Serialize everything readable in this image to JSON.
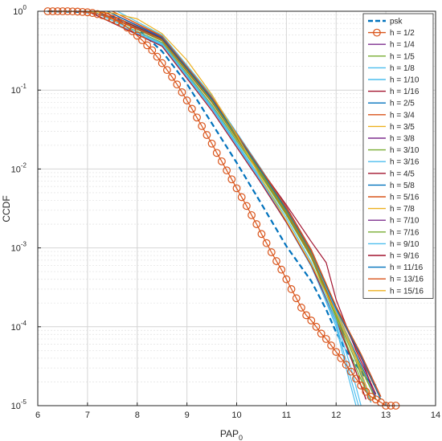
{
  "chart_data": {
    "type": "line",
    "xlabel": "PAP",
    "xlabel_sub": "0",
    "ylabel": "CCDF",
    "xlim": [
      6,
      14
    ],
    "ylim": [
      1e-05,
      1
    ],
    "yscale": "log",
    "grid": true,
    "minor_grid": true,
    "legend_position": "top-right",
    "x_ticks": [
      "6",
      "7",
      "8",
      "9",
      "10",
      "11",
      "12",
      "13",
      "14"
    ],
    "y_ticks": [
      {
        "base": "10",
        "exp": "0"
      },
      {
        "base": "10",
        "exp": "-1"
      },
      {
        "base": "10",
        "exp": "-2"
      },
      {
        "base": "10",
        "exp": "-3"
      },
      {
        "base": "10",
        "exp": "-4"
      },
      {
        "base": "10",
        "exp": "-5"
      }
    ],
    "series": [
      {
        "name": "psk",
        "color": "#0072BD",
        "style": "dashed",
        "x": [
          6.2,
          7.0,
          7.5,
          8.0,
          8.5,
          9.0,
          9.5,
          10.0,
          10.5,
          11.0,
          11.5,
          11.8,
          12.0,
          12.2,
          12.4,
          12.6,
          12.8
        ],
        "y": [
          1,
          0.97,
          0.85,
          0.6,
          0.31,
          0.12,
          0.038,
          0.012,
          0.0036,
          0.00105,
          0.00038,
          0.000165,
          8.5e-05,
          5e-05,
          3.3e-05,
          2.2e-05,
          1.8e-05
        ]
      },
      {
        "name": "h = 1/2",
        "color": "#D95319",
        "marker": "circle",
        "x": [
          6.2,
          6.3,
          6.4,
          6.5,
          6.6,
          6.7,
          6.8,
          6.9,
          7.0,
          7.1,
          7.2,
          7.3,
          7.4,
          7.5,
          7.6,
          7.7,
          7.8,
          7.9,
          8.0,
          8.1,
          8.2,
          8.3,
          8.4,
          8.5,
          8.6,
          8.7,
          8.8,
          8.9,
          9.0,
          9.1,
          9.2,
          9.3,
          9.4,
          9.5,
          9.6,
          9.7,
          9.8,
          9.9,
          10.0,
          10.1,
          10.2,
          10.3,
          10.4,
          10.5,
          10.6,
          10.7,
          10.8,
          10.9,
          11.0,
          11.1,
          11.2,
          11.3,
          11.4,
          11.5,
          11.6,
          11.7,
          11.8,
          11.9,
          12.0,
          12.1,
          12.2,
          12.3,
          12.4,
          12.5,
          12.6,
          12.7,
          12.8,
          12.9,
          13.0,
          13.1,
          13.2
        ],
        "y": [
          1,
          1,
          1,
          1,
          1,
          0.995,
          0.99,
          0.98,
          0.97,
          0.95,
          0.92,
          0.89,
          0.85,
          0.8,
          0.75,
          0.69,
          0.62,
          0.56,
          0.49,
          0.43,
          0.37,
          0.32,
          0.265,
          0.22,
          0.18,
          0.147,
          0.118,
          0.094,
          0.074,
          0.058,
          0.045,
          0.035,
          0.027,
          0.021,
          0.016,
          0.0125,
          0.0096,
          0.0074,
          0.0057,
          0.0044,
          0.0034,
          0.0026,
          0.002,
          0.0015,
          0.00115,
          0.00088,
          0.00068,
          0.00053,
          0.0004,
          0.0003,
          0.00023,
          0.000175,
          0.00014,
          0.00012,
          0.0001,
          8.2e-05,
          7e-05,
          5.8e-05,
          4.8e-05,
          4e-05,
          3.3e-05,
          2.7e-05,
          2.2e-05,
          1.8e-05,
          1.5e-05,
          1.3e-05,
          1.2e-05,
          1.1e-05,
          1e-05,
          1e-05,
          1e-05
        ]
      },
      {
        "name": "h = 1/4",
        "color": "#7E2F8E",
        "x": [
          7.2,
          8.5,
          9.5,
          10.5,
          11.0,
          11.5,
          12.0,
          12.3,
          12.6
        ],
        "y": [
          1,
          0.42,
          0.07,
          0.0085,
          0.0028,
          0.0008,
          0.00015,
          4e-05,
          1.2e-05
        ]
      },
      {
        "name": "h = 1/5",
        "color": "#77AC30",
        "x": [
          7.1,
          8.5,
          9.5,
          10.5,
          11.0,
          11.5,
          12.0,
          12.4,
          12.7
        ],
        "y": [
          1,
          0.4,
          0.065,
          0.008,
          0.0026,
          0.00075,
          0.00013,
          3e-05,
          1.1e-05
        ]
      },
      {
        "name": "h = 1/8",
        "color": "#4DBEEE",
        "x": [
          7.0,
          8.5,
          9.5,
          10.5,
          11.0,
          11.5,
          12.0,
          12.2,
          12.4
        ],
        "y": [
          1,
          0.38,
          0.06,
          0.007,
          0.0022,
          0.0006,
          0.0001,
          3e-05,
          1e-05
        ]
      },
      {
        "name": "h = 1/10",
        "color": "#4DBEEE",
        "x": [
          7.0,
          8.5,
          9.5,
          10.5,
          11.0,
          11.5,
          12.0,
          12.25,
          12.45
        ],
        "y": [
          1,
          0.37,
          0.058,
          0.0068,
          0.0021,
          0.00058,
          0.00011,
          2.8e-05,
          1e-05
        ]
      },
      {
        "name": "h = 1/16",
        "color": "#A2142F",
        "x": [
          7.0,
          8.5,
          9.5,
          10.5,
          11.0,
          11.5,
          12.0,
          12.3,
          12.6
        ],
        "y": [
          1,
          0.36,
          0.055,
          0.0065,
          0.0021,
          0.0006,
          0.00012,
          4e-05,
          1.2e-05
        ]
      },
      {
        "name": "h = 2/5",
        "color": "#0072BD",
        "x": [
          7.2,
          8.5,
          9.5,
          10.5,
          11.0,
          11.5,
          12.0,
          12.4,
          12.8
        ],
        "y": [
          1,
          0.43,
          0.072,
          0.0088,
          0.0029,
          0.00085,
          0.00016,
          4.5e-05,
          1.3e-05
        ]
      },
      {
        "name": "h = 3/4",
        "color": "#D95319",
        "x": [
          7.3,
          8.5,
          9.5,
          10.5,
          11.0,
          11.5,
          12.0,
          12.5,
          12.9
        ],
        "y": [
          1,
          0.45,
          0.076,
          0.0092,
          0.003,
          0.00088,
          0.00017,
          4e-05,
          1.2e-05
        ]
      },
      {
        "name": "h = 3/5",
        "color": "#EDB120",
        "x": [
          7.3,
          8.5,
          9.5,
          10.5,
          11.0,
          11.5,
          12.0,
          12.4,
          12.8
        ],
        "y": [
          1,
          0.46,
          0.078,
          0.0094,
          0.0031,
          0.0009,
          0.00017,
          4.2e-05,
          1.2e-05
        ]
      },
      {
        "name": "h = 3/8",
        "color": "#7E2F8E",
        "x": [
          7.2,
          8.5,
          9.5,
          10.5,
          11.0,
          11.5,
          12.0,
          12.4,
          12.7
        ],
        "y": [
          1,
          0.44,
          0.074,
          0.009,
          0.0029,
          0.00082,
          0.00015,
          4e-05,
          1.2e-05
        ]
      },
      {
        "name": "h = 3/10",
        "color": "#77AC30",
        "x": [
          7.2,
          8.5,
          9.5,
          10.5,
          11.0,
          11.5,
          12.0,
          12.4,
          12.7
        ],
        "y": [
          1,
          0.42,
          0.07,
          0.0084,
          0.0027,
          0.00078,
          0.00014,
          3.6e-05,
          1.1e-05
        ]
      },
      {
        "name": "h = 3/16",
        "color": "#4DBEEE",
        "x": [
          7.1,
          8.5,
          9.5,
          10.5,
          11.0,
          11.5,
          12.0,
          12.3,
          12.5
        ],
        "y": [
          1,
          0.39,
          0.062,
          0.0074,
          0.0024,
          0.00066,
          0.00012,
          3e-05,
          1e-05
        ]
      },
      {
        "name": "h = 4/5",
        "color": "#A2142F",
        "x": [
          7.4,
          8.5,
          9.5,
          10.5,
          11.0,
          11.5,
          12.0,
          12.5,
          12.9
        ],
        "y": [
          1,
          0.47,
          0.08,
          0.0097,
          0.0033,
          0.00095,
          0.00018,
          4.5e-05,
          1.3e-05
        ]
      },
      {
        "name": "h = 5/8",
        "color": "#0072BD",
        "x": [
          7.3,
          8.5,
          9.5,
          10.5,
          11.0,
          11.5,
          12.0,
          12.4,
          12.8
        ],
        "y": [
          1,
          0.45,
          0.077,
          0.0093,
          0.003,
          0.00087,
          0.00016,
          4e-05,
          1.2e-05
        ]
      },
      {
        "name": "h = 5/16",
        "color": "#D95319",
        "x": [
          7.2,
          8.5,
          9.5,
          10.5,
          11.0,
          11.5,
          12.0,
          12.4,
          12.7
        ],
        "y": [
          1,
          0.43,
          0.071,
          0.0086,
          0.0028,
          0.0008,
          0.00015,
          4e-05,
          1.1e-05
        ]
      },
      {
        "name": "h = 7/8",
        "color": "#EDB120",
        "x": [
          7.5,
          8.5,
          9.5,
          10.5,
          11.0,
          11.5,
          12.0,
          12.5,
          12.9
        ],
        "y": [
          1,
          0.49,
          0.083,
          0.0098,
          0.0032,
          0.00093,
          0.00018,
          4.5e-05,
          1.2e-05
        ]
      },
      {
        "name": "h = 7/10",
        "color": "#7E2F8E",
        "x": [
          7.4,
          8.5,
          9.5,
          10.5,
          11.0,
          11.5,
          12.0,
          12.5,
          12.8
        ],
        "y": [
          1,
          0.47,
          0.079,
          0.0095,
          0.0031,
          0.0009,
          0.00017,
          4.2e-05,
          1.2e-05
        ]
      },
      {
        "name": "h = 7/16",
        "color": "#77AC30",
        "x": [
          7.3,
          8.5,
          9.5,
          10.5,
          11.0,
          11.5,
          12.0,
          12.4,
          12.8
        ],
        "y": [
          1,
          0.44,
          0.073,
          0.0088,
          0.0029,
          0.00084,
          0.00016,
          4e-05,
          1.2e-05
        ]
      },
      {
        "name": "h = 9/10",
        "color": "#4DBEEE",
        "x": [
          7.6,
          8.5,
          9.5,
          10.5,
          11.0,
          11.5,
          12.0,
          12.4,
          12.7
        ],
        "y": [
          1,
          0.5,
          0.085,
          0.0099,
          0.0032,
          0.0009,
          0.00016,
          4e-05,
          1.1e-05
        ]
      },
      {
        "name": "h = 9/16",
        "color": "#A2142F",
        "x": [
          7.3,
          8.5,
          9.5,
          10.5,
          11.0,
          11.5,
          11.8,
          12.0,
          12.4,
          12.8
        ],
        "y": [
          1,
          0.45,
          0.078,
          0.0096,
          0.0035,
          0.0012,
          0.00065,
          0.00022,
          5e-05,
          1.4e-05
        ]
      },
      {
        "name": "h = 11/16",
        "color": "#0072BD",
        "x": [
          7.4,
          8.5,
          9.5,
          10.5,
          11.0,
          11.5,
          12.0,
          12.5,
          12.9
        ],
        "y": [
          1,
          0.46,
          0.078,
          0.0094,
          0.0031,
          0.0009,
          0.00017,
          4.3e-05,
          1.2e-05
        ]
      },
      {
        "name": "h = 13/16",
        "color": "#D95319",
        "x": [
          7.5,
          8.5,
          9.5,
          10.5,
          11.0,
          11.5,
          12.0,
          12.5,
          12.9
        ],
        "y": [
          1,
          0.48,
          0.081,
          0.0097,
          0.0032,
          0.00092,
          0.00018,
          4.5e-05,
          1.3e-05
        ]
      },
      {
        "name": "h = 15/16",
        "color": "#EDB120",
        "x": [
          6.2,
          7.0,
          7.5,
          8.0,
          8.5,
          9.0,
          9.5,
          10.0,
          10.5,
          11.0,
          11.5,
          12.0,
          12.4,
          12.7
        ],
        "y": [
          1,
          0.99,
          0.95,
          0.8,
          0.52,
          0.24,
          0.088,
          0.027,
          0.0075,
          0.0022,
          0.00062,
          0.00015,
          4e-05,
          1.2e-05
        ]
      }
    ]
  }
}
